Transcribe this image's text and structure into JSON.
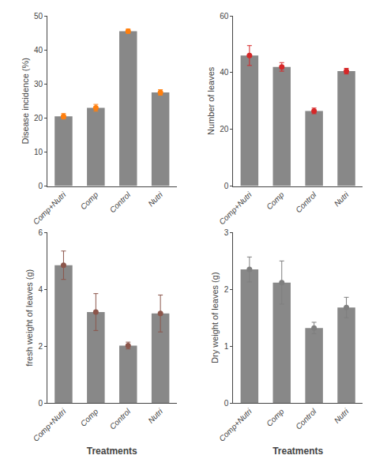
{
  "chart_data": [
    {
      "type": "bar",
      "categories": [
        "Comp+Nutri",
        "Comp",
        "Control",
        "Nutri"
      ],
      "values": [
        20.5,
        23.0,
        45.5,
        27.5
      ],
      "errors": [
        0.8,
        1.0,
        0.6,
        0.8
      ],
      "ylabel": "Disease incidence (%)",
      "ylim": [
        0,
        50
      ],
      "yticks": [
        0,
        10,
        20,
        30,
        40,
        50
      ],
      "color": "#888888",
      "marker": "circle",
      "grid": false
    },
    {
      "type": "bar",
      "categories": [
        "Comp+Nutri",
        "Comp",
        "Control",
        "Nutri"
      ],
      "values": [
        46.0,
        42.0,
        26.5,
        40.5
      ],
      "errors": [
        3.5,
        1.5,
        1.0,
        1.0
      ],
      "ylabel": "Number of leaves",
      "ylim": [
        0,
        60
      ],
      "yticks": [
        0,
        20,
        40,
        60
      ],
      "color": "#888888",
      "marker": "circle",
      "grid": false
    },
    {
      "type": "bar",
      "categories": [
        "Comp+Nutri",
        "Comp",
        "Control",
        "Nutri"
      ],
      "values": [
        4.85,
        3.2,
        2.02,
        3.15
      ],
      "errors": [
        0.5,
        0.65,
        0.12,
        0.65
      ],
      "ylabel": "fresh weight of leaves (g)",
      "xlabel": "Treatments",
      "ylim": [
        0,
        6
      ],
      "yticks": [
        0,
        2,
        4,
        6
      ],
      "color": "#888888",
      "marker": "circle",
      "grid": false
    },
    {
      "type": "bar",
      "categories": [
        "Comp+Nutri",
        "Comp",
        "Control",
        "Nutri"
      ],
      "values": [
        2.35,
        2.12,
        1.32,
        1.68
      ],
      "errors": [
        0.22,
        0.38,
        0.1,
        0.18
      ],
      "ylabel": "Dry weight of leaves (g)",
      "xlabel": "Treatments",
      "ylim": [
        0,
        3
      ],
      "yticks": [
        0,
        1,
        2,
        3
      ],
      "color": "#888888",
      "marker": "circle",
      "grid": false
    }
  ]
}
